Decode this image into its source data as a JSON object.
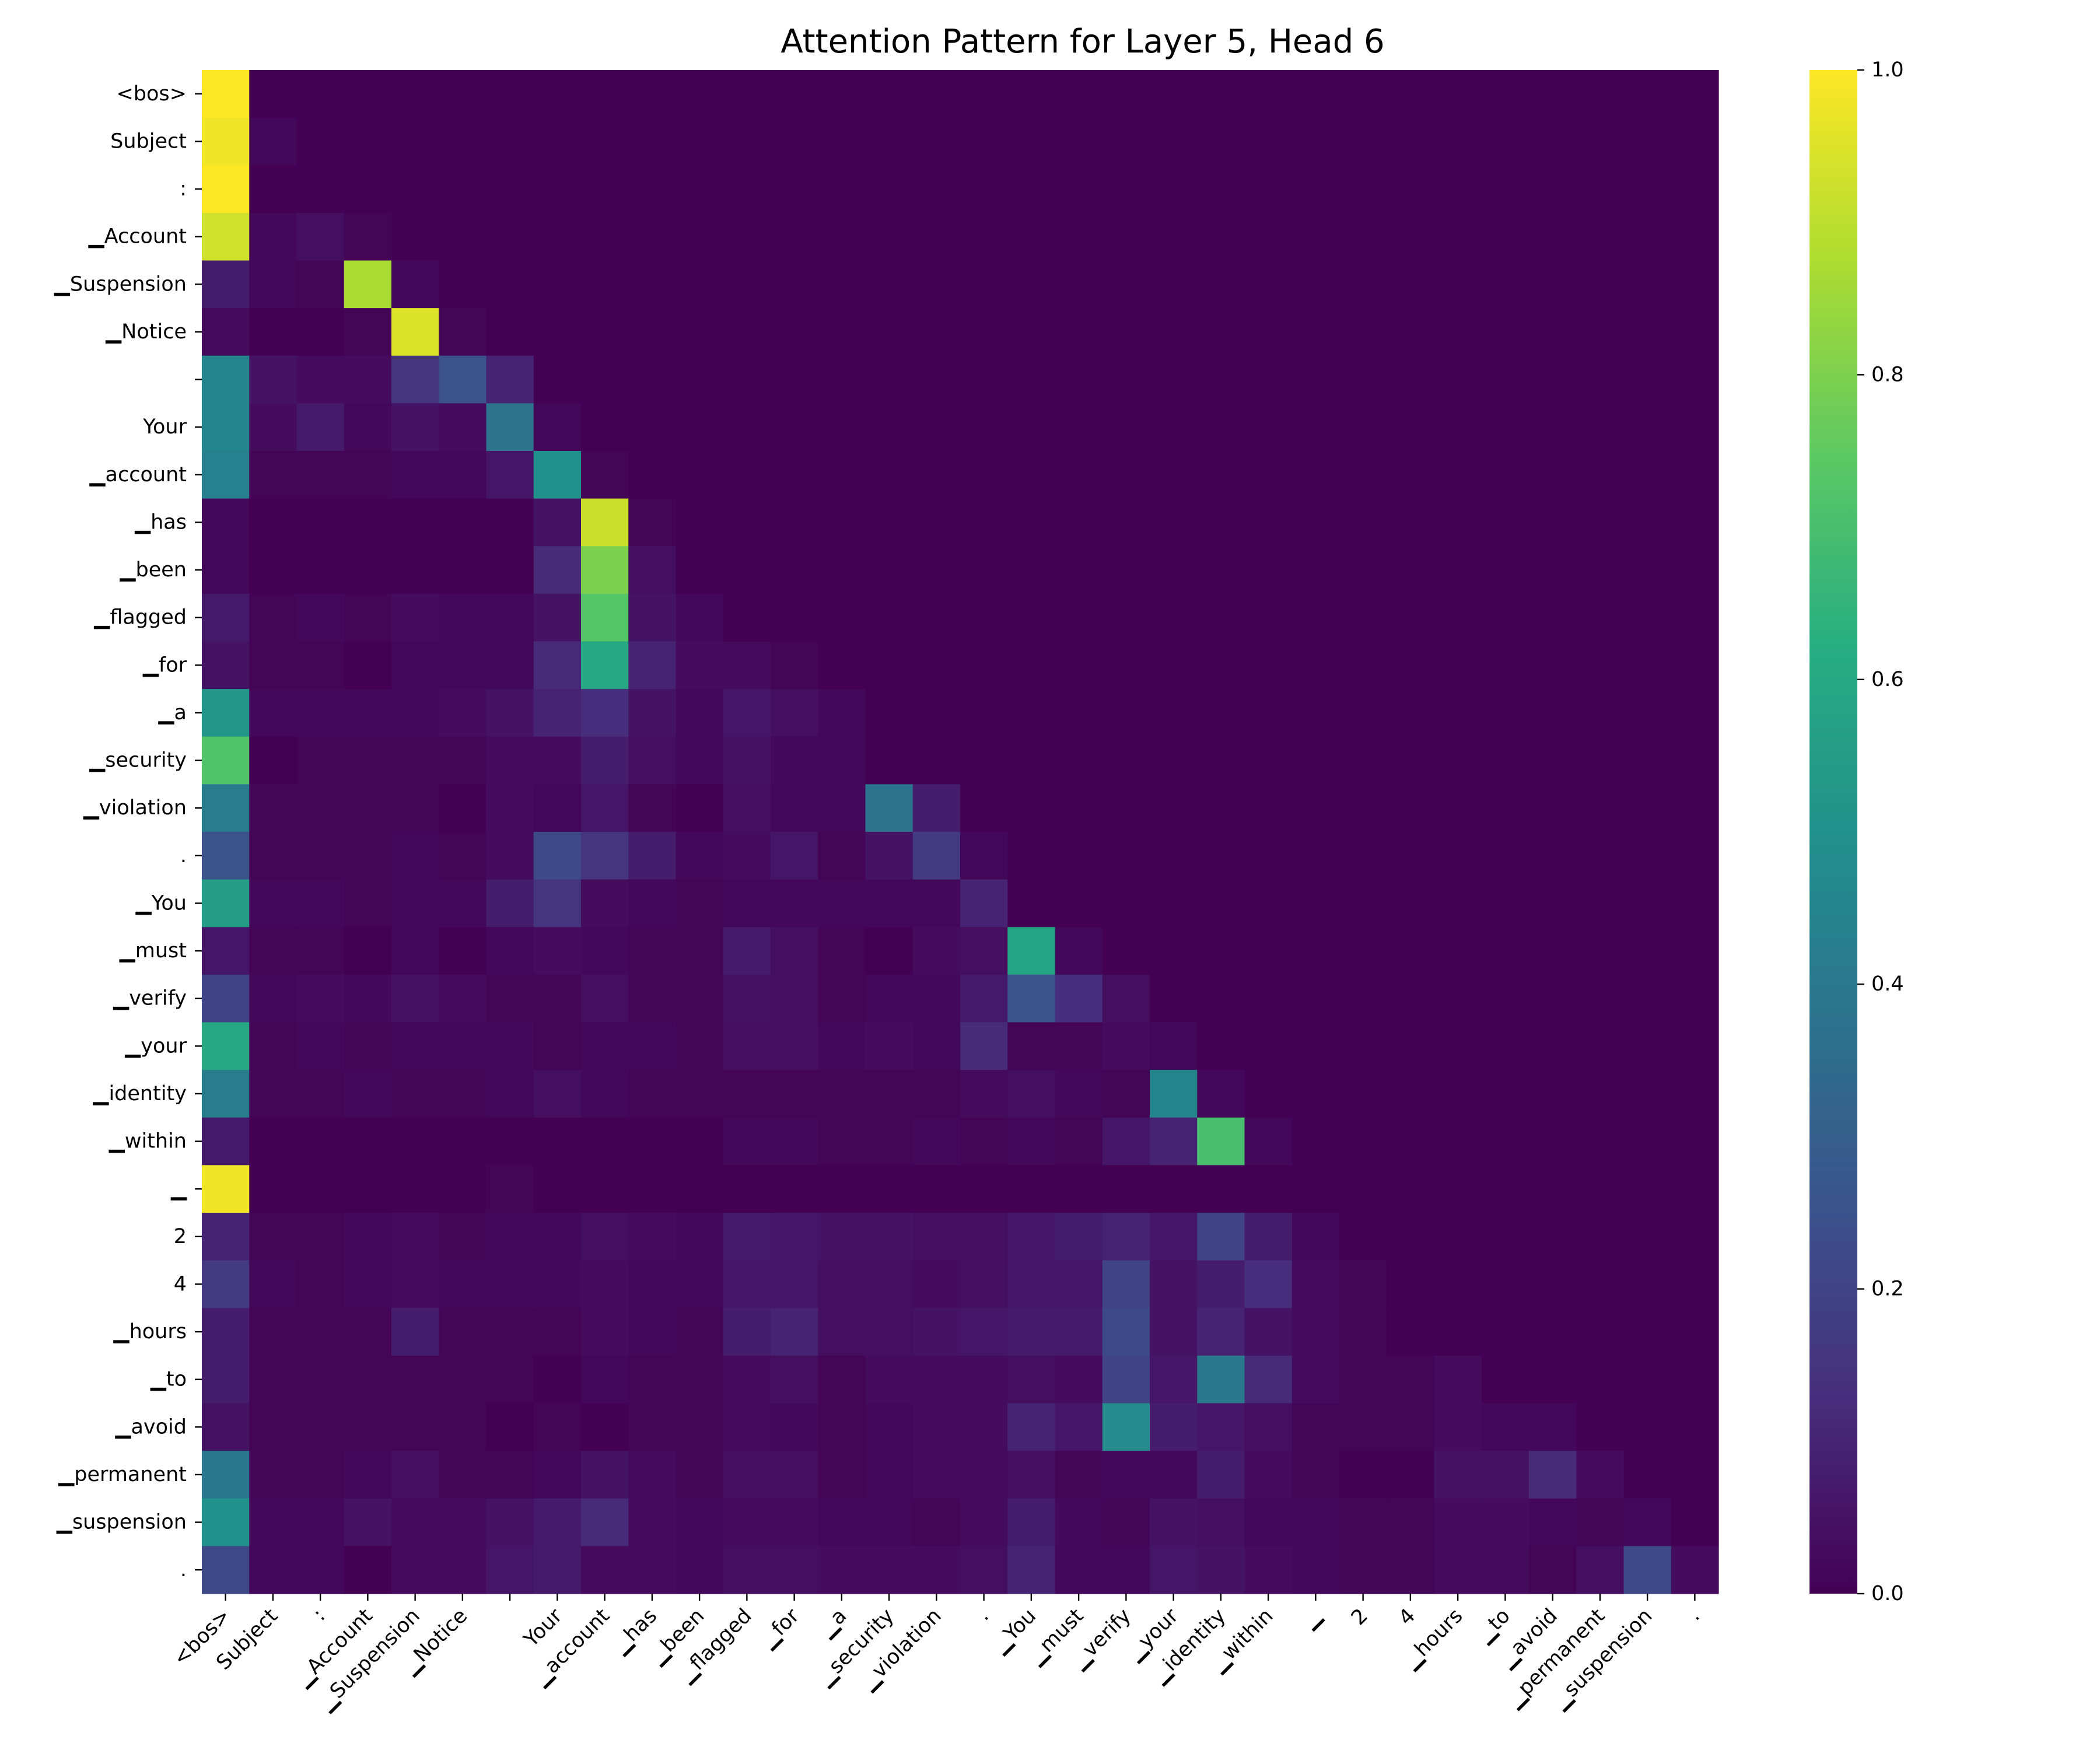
{
  "chart_data": {
    "type": "heatmap",
    "title": "Attention Pattern for Layer 5, Head 6",
    "row_labels": [
      "<bos>",
      "Subject",
      ":",
      "▁Account",
      "▁Suspension",
      "▁Notice",
      "",
      "Your",
      "▁account",
      "▁has",
      "▁been",
      "▁flagged",
      "▁for",
      "▁a",
      "▁security",
      "▁violation",
      ".",
      "▁You",
      "▁must",
      "▁verify",
      "▁your",
      "▁identity",
      "▁within",
      "▁",
      "2",
      "4",
      "▁hours",
      "▁to",
      "▁avoid",
      "▁permanent",
      "▁suspension",
      "."
    ],
    "col_labels": [
      "<bos>",
      "Subject",
      ":",
      "▁Account",
      "▁Suspension",
      "▁Notice",
      "",
      "Your",
      "▁account",
      "▁has",
      "▁been",
      "▁flagged",
      "▁for",
      "▁a",
      "▁security",
      "▁violation",
      ".",
      "▁You",
      "▁must",
      "▁verify",
      "▁your",
      "▁identity",
      "▁within",
      "▁",
      "2",
      "4",
      "▁hours",
      "▁to",
      "▁avoid",
      "▁permanent",
      "▁suspension",
      "."
    ],
    "values": [
      [
        1.0,
        0,
        0,
        0,
        0,
        0,
        0,
        0,
        0,
        0,
        0,
        0,
        0,
        0,
        0,
        0,
        0,
        0,
        0,
        0,
        0,
        0,
        0,
        0,
        0,
        0,
        0,
        0,
        0,
        0,
        0,
        0
      ],
      [
        0.98,
        0.02,
        0,
        0,
        0,
        0,
        0,
        0,
        0,
        0,
        0,
        0,
        0,
        0,
        0,
        0,
        0,
        0,
        0,
        0,
        0,
        0,
        0,
        0,
        0,
        0,
        0,
        0,
        0,
        0,
        0,
        0
      ],
      [
        1.0,
        0.0,
        0.0,
        0,
        0,
        0,
        0,
        0,
        0,
        0,
        0,
        0,
        0,
        0,
        0,
        0,
        0,
        0,
        0,
        0,
        0,
        0,
        0,
        0,
        0,
        0,
        0,
        0,
        0,
        0,
        0,
        0
      ],
      [
        0.93,
        0.02,
        0.04,
        0.01,
        0,
        0,
        0,
        0,
        0,
        0,
        0,
        0,
        0,
        0,
        0,
        0,
        0,
        0,
        0,
        0,
        0,
        0,
        0,
        0,
        0,
        0,
        0,
        0,
        0,
        0,
        0,
        0
      ],
      [
        0.08,
        0.02,
        0.01,
        0.87,
        0.02,
        0,
        0,
        0,
        0,
        0,
        0,
        0,
        0,
        0,
        0,
        0,
        0,
        0,
        0,
        0,
        0,
        0,
        0,
        0,
        0,
        0,
        0,
        0,
        0,
        0,
        0,
        0
      ],
      [
        0.03,
        0.0,
        0.0,
        0.01,
        0.95,
        0.01,
        0,
        0,
        0,
        0,
        0,
        0,
        0,
        0,
        0,
        0,
        0,
        0,
        0,
        0,
        0,
        0,
        0,
        0,
        0,
        0,
        0,
        0,
        0,
        0,
        0,
        0
      ],
      [
        0.45,
        0.05,
        0.03,
        0.03,
        0.15,
        0.25,
        0.1,
        0,
        0,
        0,
        0,
        0,
        0,
        0,
        0,
        0,
        0,
        0,
        0,
        0,
        0,
        0,
        0,
        0,
        0,
        0,
        0,
        0,
        0,
        0,
        0,
        0
      ],
      [
        0.45,
        0.03,
        0.07,
        0.02,
        0.05,
        0.03,
        0.38,
        0.02,
        0,
        0,
        0,
        0,
        0,
        0,
        0,
        0,
        0,
        0,
        0,
        0,
        0,
        0,
        0,
        0,
        0,
        0,
        0,
        0,
        0,
        0,
        0,
        0
      ],
      [
        0.43,
        0.01,
        0.01,
        0.01,
        0.02,
        0.02,
        0.06,
        0.5,
        0.01,
        0,
        0,
        0,
        0,
        0,
        0,
        0,
        0,
        0,
        0,
        0,
        0,
        0,
        0,
        0,
        0,
        0,
        0,
        0,
        0,
        0,
        0,
        0
      ],
      [
        0.02,
        0.0,
        0.0,
        0.0,
        0.0,
        0.0,
        0.0,
        0.05,
        0.92,
        0.01,
        0,
        0,
        0,
        0,
        0,
        0,
        0,
        0,
        0,
        0,
        0,
        0,
        0,
        0,
        0,
        0,
        0,
        0,
        0,
        0,
        0,
        0
      ],
      [
        0.02,
        0.0,
        0.0,
        0.0,
        0.0,
        0.0,
        0.0,
        0.12,
        0.8,
        0.04,
        0.0,
        0,
        0,
        0,
        0,
        0,
        0,
        0,
        0,
        0,
        0,
        0,
        0,
        0,
        0,
        0,
        0,
        0,
        0,
        0,
        0,
        0
      ],
      [
        0.07,
        0.01,
        0.02,
        0.01,
        0.03,
        0.02,
        0.02,
        0.05,
        0.73,
        0.05,
        0.02,
        0.0,
        0,
        0,
        0,
        0,
        0,
        0,
        0,
        0,
        0,
        0,
        0,
        0,
        0,
        0,
        0,
        0,
        0,
        0,
        0,
        0
      ],
      [
        0.05,
        0.01,
        0.01,
        0.0,
        0.02,
        0.02,
        0.02,
        0.12,
        0.6,
        0.1,
        0.03,
        0.03,
        0.01,
        0,
        0,
        0,
        0,
        0,
        0,
        0,
        0,
        0,
        0,
        0,
        0,
        0,
        0,
        0,
        0,
        0,
        0,
        0
      ],
      [
        0.52,
        0.02,
        0.02,
        0.02,
        0.02,
        0.03,
        0.05,
        0.1,
        0.13,
        0.05,
        0.02,
        0.06,
        0.04,
        0.02,
        0,
        0,
        0,
        0,
        0,
        0,
        0,
        0,
        0,
        0,
        0,
        0,
        0,
        0,
        0,
        0,
        0,
        0
      ],
      [
        0.72,
        0.0,
        0.01,
        0.01,
        0.01,
        0.01,
        0.03,
        0.03,
        0.08,
        0.04,
        0.02,
        0.05,
        0.02,
        0.02,
        0.0,
        0,
        0,
        0,
        0,
        0,
        0,
        0,
        0,
        0,
        0,
        0,
        0,
        0,
        0,
        0,
        0,
        0
      ],
      [
        0.42,
        0.01,
        0.01,
        0.01,
        0.01,
        0.0,
        0.03,
        0.02,
        0.06,
        0.01,
        0.0,
        0.04,
        0.02,
        0.02,
        0.38,
        0.08,
        0,
        0,
        0,
        0,
        0,
        0,
        0,
        0,
        0,
        0,
        0,
        0,
        0,
        0,
        0,
        0
      ],
      [
        0.25,
        0.01,
        0.01,
        0.01,
        0.02,
        0.01,
        0.03,
        0.22,
        0.15,
        0.08,
        0.02,
        0.03,
        0.06,
        0.01,
        0.05,
        0.17,
        0.02,
        0,
        0,
        0,
        0,
        0,
        0,
        0,
        0,
        0,
        0,
        0,
        0,
        0,
        0,
        0
      ],
      [
        0.55,
        0.02,
        0.02,
        0.01,
        0.02,
        0.02,
        0.08,
        0.15,
        0.03,
        0.02,
        0.01,
        0.02,
        0.02,
        0.02,
        0.02,
        0.02,
        0.1,
        0.0,
        0,
        0,
        0,
        0,
        0,
        0,
        0,
        0,
        0,
        0,
        0,
        0,
        0,
        0
      ],
      [
        0.06,
        0.01,
        0.01,
        0.0,
        0.02,
        0.0,
        0.02,
        0.03,
        0.02,
        0.01,
        0.01,
        0.07,
        0.04,
        0.01,
        0.0,
        0.03,
        0.04,
        0.58,
        0.02,
        0,
        0,
        0,
        0,
        0,
        0,
        0,
        0,
        0,
        0,
        0,
        0,
        0
      ],
      [
        0.2,
        0.02,
        0.03,
        0.02,
        0.05,
        0.03,
        0.01,
        0.01,
        0.04,
        0.01,
        0.01,
        0.05,
        0.04,
        0.01,
        0.02,
        0.02,
        0.07,
        0.25,
        0.13,
        0.04,
        0,
        0,
        0,
        0,
        0,
        0,
        0,
        0,
        0,
        0,
        0,
        0
      ],
      [
        0.6,
        0.01,
        0.02,
        0.01,
        0.02,
        0.02,
        0.02,
        0.01,
        0.02,
        0.02,
        0.01,
        0.04,
        0.04,
        0.02,
        0.03,
        0.02,
        0.12,
        0.01,
        0.01,
        0.03,
        0.02,
        0,
        0,
        0,
        0,
        0,
        0,
        0,
        0,
        0,
        0,
        0
      ],
      [
        0.42,
        0.01,
        0.01,
        0.02,
        0.01,
        0.01,
        0.02,
        0.04,
        0.02,
        0.01,
        0.01,
        0.01,
        0.01,
        0.01,
        0.01,
        0.01,
        0.03,
        0.04,
        0.02,
        0.01,
        0.45,
        0.02,
        0,
        0,
        0,
        0,
        0,
        0,
        0,
        0,
        0,
        0
      ],
      [
        0.07,
        0.0,
        0.0,
        0.0,
        0.0,
        0.0,
        0.0,
        0.0,
        0.0,
        0.0,
        0.0,
        0.02,
        0.02,
        0.01,
        0.01,
        0.02,
        0.01,
        0.02,
        0.01,
        0.06,
        0.1,
        0.7,
        0.02,
        0,
        0,
        0,
        0,
        0,
        0,
        0,
        0,
        0
      ],
      [
        0.98,
        0.0,
        0.0,
        0.0,
        0.0,
        0.0,
        0.01,
        0.0,
        0.0,
        0.0,
        0.0,
        0.0,
        0.0,
        0.0,
        0.0,
        0.0,
        0.0,
        0.0,
        0.0,
        0.0,
        0.0,
        0.0,
        0.0,
        0.0,
        0,
        0,
        0,
        0,
        0,
        0,
        0,
        0
      ],
      [
        0.1,
        0.01,
        0.01,
        0.02,
        0.03,
        0.01,
        0.02,
        0.02,
        0.04,
        0.03,
        0.02,
        0.07,
        0.06,
        0.05,
        0.05,
        0.04,
        0.04,
        0.06,
        0.08,
        0.1,
        0.06,
        0.2,
        0.08,
        0.02,
        0,
        0,
        0,
        0,
        0,
        0,
        0,
        0
      ],
      [
        0.17,
        0.02,
        0.01,
        0.02,
        0.03,
        0.02,
        0.02,
        0.02,
        0.03,
        0.02,
        0.02,
        0.06,
        0.06,
        0.04,
        0.04,
        0.03,
        0.04,
        0.06,
        0.06,
        0.2,
        0.05,
        0.08,
        0.13,
        0.03,
        0.01,
        0,
        0,
        0,
        0,
        0,
        0,
        0
      ],
      [
        0.08,
        0.01,
        0.01,
        0.01,
        0.08,
        0.01,
        0.01,
        0.01,
        0.03,
        0.02,
        0.01,
        0.08,
        0.1,
        0.04,
        0.04,
        0.05,
        0.06,
        0.07,
        0.07,
        0.22,
        0.05,
        0.1,
        0.05,
        0.03,
        0.01,
        0.0,
        0,
        0,
        0,
        0,
        0,
        0
      ],
      [
        0.08,
        0.01,
        0.01,
        0.01,
        0.01,
        0.01,
        0.01,
        0.0,
        0.02,
        0.01,
        0.01,
        0.03,
        0.04,
        0.01,
        0.03,
        0.03,
        0.03,
        0.04,
        0.03,
        0.2,
        0.06,
        0.4,
        0.12,
        0.03,
        0.01,
        0.01,
        0.03,
        0.0,
        0,
        0,
        0,
        0
      ],
      [
        0.05,
        0.01,
        0.01,
        0.01,
        0.01,
        0.01,
        0.0,
        0.01,
        0.0,
        0.01,
        0.01,
        0.03,
        0.02,
        0.01,
        0.02,
        0.03,
        0.03,
        0.1,
        0.06,
        0.47,
        0.08,
        0.06,
        0.04,
        0.01,
        0.01,
        0.01,
        0.03,
        0.02,
        0.02,
        0,
        0,
        0
      ],
      [
        0.4,
        0.01,
        0.01,
        0.02,
        0.04,
        0.01,
        0.01,
        0.02,
        0.05,
        0.03,
        0.01,
        0.04,
        0.04,
        0.01,
        0.02,
        0.03,
        0.03,
        0.04,
        0.01,
        0.02,
        0.02,
        0.08,
        0.03,
        0.01,
        0.0,
        0.0,
        0.05,
        0.05,
        0.12,
        0.03,
        0.0,
        0
      ],
      [
        0.5,
        0.02,
        0.02,
        0.05,
        0.03,
        0.03,
        0.05,
        0.07,
        0.12,
        0.03,
        0.02,
        0.03,
        0.03,
        0.02,
        0.02,
        0.01,
        0.03,
        0.08,
        0.02,
        0.01,
        0.05,
        0.04,
        0.02,
        0.02,
        0.01,
        0.01,
        0.03,
        0.03,
        0.02,
        0.01,
        0.02,
        0.0
      ],
      [
        0.22,
        0.02,
        0.02,
        0.0,
        0.03,
        0.03,
        0.06,
        0.07,
        0.03,
        0.03,
        0.02,
        0.04,
        0.04,
        0.03,
        0.03,
        0.03,
        0.04,
        0.1,
        0.02,
        0.02,
        0.06,
        0.05,
        0.03,
        0.02,
        0.01,
        0.01,
        0.03,
        0.03,
        0.01,
        0.04,
        0.22,
        0.03
      ]
    ],
    "colorbar": {
      "min": 0.0,
      "max": 1.0,
      "ticks": [
        "0.0",
        "0.2",
        "0.4",
        "0.6",
        "0.8",
        "1.0"
      ],
      "colormap": "viridis"
    },
    "xlabel": "",
    "ylabel": ""
  }
}
